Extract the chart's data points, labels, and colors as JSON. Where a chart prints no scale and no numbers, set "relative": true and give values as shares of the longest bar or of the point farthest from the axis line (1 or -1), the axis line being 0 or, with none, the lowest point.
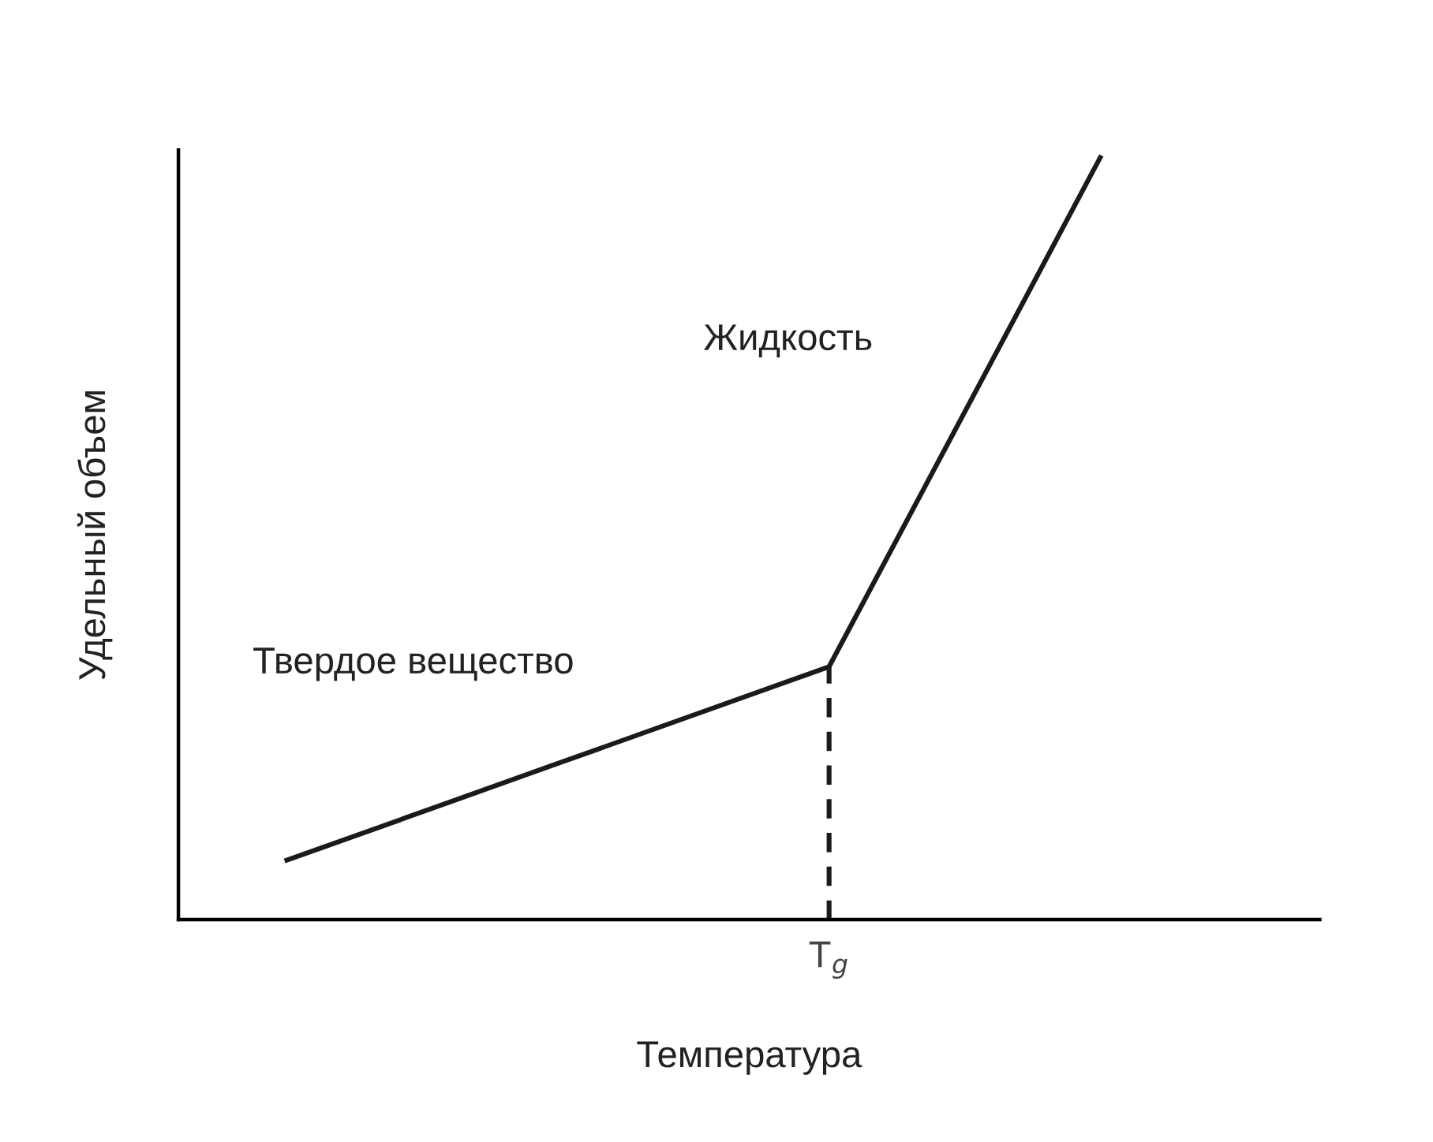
{
  "chart_data": {
    "type": "line",
    "relative": true,
    "xlabel": "Температура",
    "ylabel": "Удельный объем",
    "categories": [
      null,
      null,
      null,
      null
    ],
    "marker": "none",
    "series": [
      {
        "color": "#1a1a1a",
        "values": [
          0.078,
          0.205,
          0.332,
          1
        ],
        "line_style": "solid"
      }
    ],
    "annotations": [
      "Жидкость",
      "Твердое вещество",
      "T$_{g}$"
    ]
  }
}
